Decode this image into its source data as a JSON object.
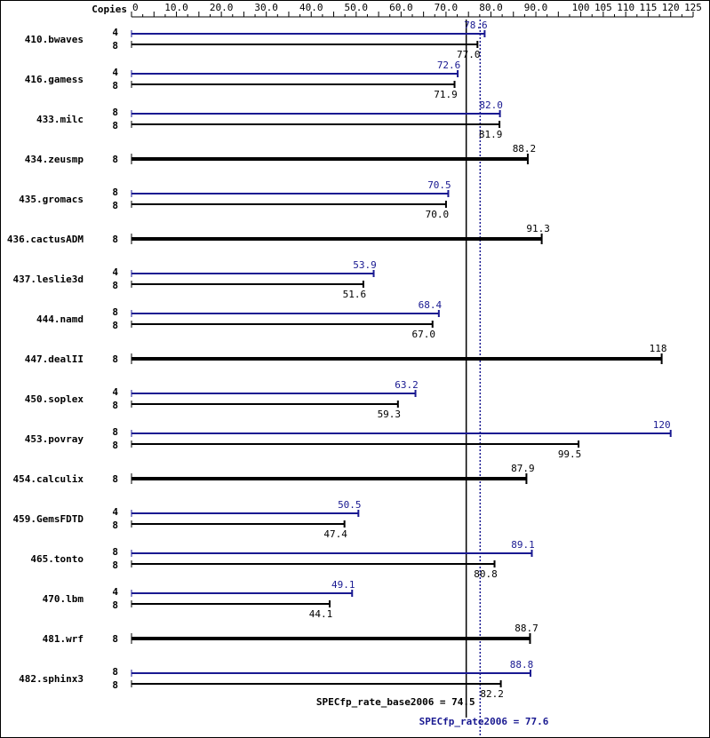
{
  "chart_data": {
    "type": "bar",
    "orientation": "horizontal",
    "copies_header": "Copies",
    "xlim": [
      0,
      125
    ],
    "x_ticks": [
      {
        "value": 0,
        "label": "0"
      },
      {
        "value": 10,
        "label": "10.0"
      },
      {
        "value": 20,
        "label": "20.0"
      },
      {
        "value": 30,
        "label": "30.0"
      },
      {
        "value": 40,
        "label": "40.0"
      },
      {
        "value": 50,
        "label": "50.0"
      },
      {
        "value": 60,
        "label": "60.0"
      },
      {
        "value": 70,
        "label": "70.0"
      },
      {
        "value": 80,
        "label": "80.0"
      },
      {
        "value": 90,
        "label": "90.0"
      },
      {
        "value": 100,
        "label": "100"
      },
      {
        "value": 105,
        "label": "105"
      },
      {
        "value": 110,
        "label": "110"
      },
      {
        "value": 115,
        "label": "115"
      },
      {
        "value": 120,
        "label": "120"
      },
      {
        "value": 125,
        "label": "125"
      }
    ],
    "colors": {
      "peak": "#191991",
      "base": "#000000"
    },
    "benchmarks": [
      {
        "name": "410.bwaves",
        "peak_copies": "4",
        "peak": 78.6,
        "peak_label": "78.6",
        "base_copies": "8",
        "base": 77.0,
        "base_label": "77.0"
      },
      {
        "name": "416.gamess",
        "peak_copies": "4",
        "peak": 72.6,
        "peak_label": "72.6",
        "base_copies": "8",
        "base": 71.9,
        "base_label": "71.9"
      },
      {
        "name": "433.milc",
        "peak_copies": "8",
        "peak": 82.0,
        "peak_label": "82.0",
        "base_copies": "8",
        "base": 81.9,
        "base_label": "81.9"
      },
      {
        "name": "434.zeusmp",
        "base_copies": "8",
        "base": 88.2,
        "base_label": "88.2"
      },
      {
        "name": "435.gromacs",
        "peak_copies": "8",
        "peak": 70.5,
        "peak_label": "70.5",
        "base_copies": "8",
        "base": 70.0,
        "base_label": "70.0"
      },
      {
        "name": "436.cactusADM",
        "base_copies": "8",
        "base": 91.3,
        "base_label": "91.3"
      },
      {
        "name": "437.leslie3d",
        "peak_copies": "4",
        "peak": 53.9,
        "peak_label": "53.9",
        "base_copies": "8",
        "base": 51.6,
        "base_label": "51.6"
      },
      {
        "name": "444.namd",
        "peak_copies": "8",
        "peak": 68.4,
        "peak_label": "68.4",
        "base_copies": "8",
        "base": 67.0,
        "base_label": "67.0"
      },
      {
        "name": "447.dealII",
        "base_copies": "8",
        "base": 118,
        "base_label": "118"
      },
      {
        "name": "450.soplex",
        "peak_copies": "4",
        "peak": 63.2,
        "peak_label": "63.2",
        "base_copies": "8",
        "base": 59.3,
        "base_label": "59.3"
      },
      {
        "name": "453.povray",
        "peak_copies": "8",
        "peak": 120,
        "peak_label": "120",
        "base_copies": "8",
        "base": 99.5,
        "base_label": "99.5"
      },
      {
        "name": "454.calculix",
        "base_copies": "8",
        "base": 87.9,
        "base_label": "87.9"
      },
      {
        "name": "459.GemsFDTD",
        "peak_copies": "4",
        "peak": 50.5,
        "peak_label": "50.5",
        "base_copies": "8",
        "base": 47.4,
        "base_label": "47.4"
      },
      {
        "name": "465.tonto",
        "peak_copies": "8",
        "peak": 89.1,
        "peak_label": "89.1",
        "base_copies": "8",
        "base": 80.8,
        "base_label": "80.8"
      },
      {
        "name": "470.lbm",
        "peak_copies": "4",
        "peak": 49.1,
        "peak_label": "49.1",
        "base_copies": "8",
        "base": 44.1,
        "base_label": "44.1"
      },
      {
        "name": "481.wrf",
        "base_copies": "8",
        "base": 88.7,
        "base_label": "88.7"
      },
      {
        "name": "482.sphinx3",
        "peak_copies": "8",
        "peak": 88.8,
        "peak_label": "88.8",
        "base_copies": "8",
        "base": 82.2,
        "base_label": "82.2"
      }
    ],
    "reference_lines": {
      "base": {
        "value": 74.5,
        "label": "SPECfp_rate_base2006 = 74.5"
      },
      "peak": {
        "value": 77.6,
        "label": "SPECfp_rate2006 = 77.6"
      }
    }
  }
}
